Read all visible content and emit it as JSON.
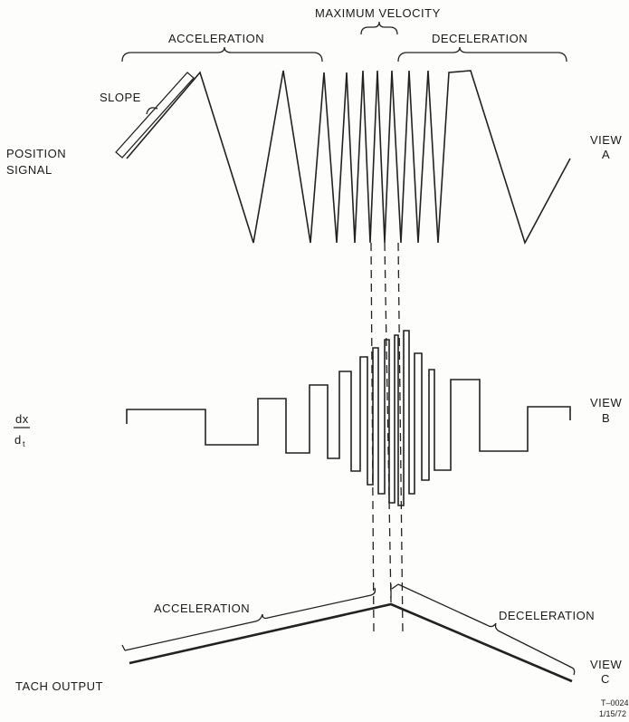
{
  "labels": {
    "maximum_velocity": "MAXIMUM VELOCITY",
    "acceleration_top": "ACCELERATION",
    "deceleration_top": "DECELERATION",
    "slope": "SLOPE",
    "position_signal_line1": "POSITION",
    "position_signal_line2": "SIGNAL",
    "view_a_line1": "VIEW",
    "view_a_line2": "A",
    "dx": "dx",
    "dt": "d",
    "dt_sub": "t",
    "view_b_line1": "VIEW",
    "view_b_line2": "B",
    "acceleration_bottom": "ACCELERATION",
    "deceleration_bottom": "DECELERATION",
    "tach_output": "TACH OUTPUT",
    "view_c_line1": "VIEW",
    "view_c_line2": "C",
    "figure_id": "T–0024",
    "figure_date": "1/15/72"
  }
}
